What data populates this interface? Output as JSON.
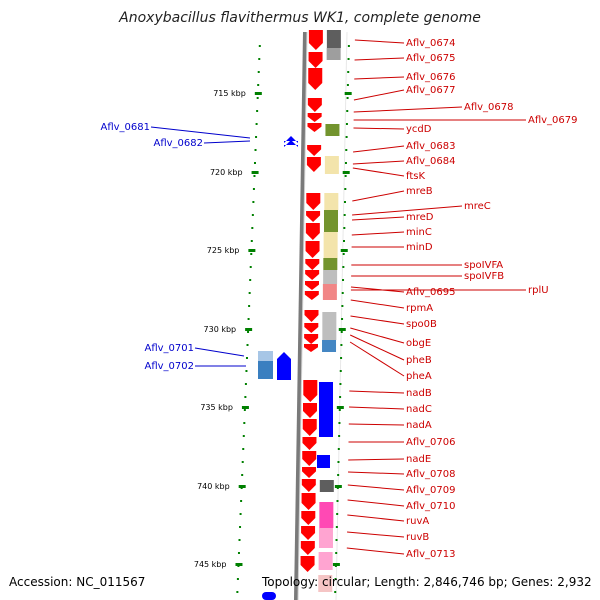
{
  "title": "Anoxybacillus flavithermus WK1, complete genome",
  "footer": {
    "accession": "Accession: NC_011567",
    "summary": "Topology: circular; Length: 2,846,746 bp; Genes: 2,932"
  },
  "colors": {
    "forward_gene": "#ff0000",
    "reverse_gene": "#0000ff",
    "label_right": "#cc0000",
    "label_left": "#0000cc",
    "tick": "#008000",
    "backbone": "#888888"
  },
  "scale_ticks": [
    {
      "label": "715 kbp"
    },
    {
      "label": "720 kbp"
    },
    {
      "label": "725 kbp"
    },
    {
      "label": "730 kbp"
    },
    {
      "label": "735 kbp"
    },
    {
      "label": "740 kbp"
    },
    {
      "label": "745 kbp"
    }
  ],
  "right_labels": [
    "Aflv_0674",
    "Aflv_0675",
    "Aflv_0676",
    "Aflv_0677",
    "Aflv_0678",
    "Aflv_0679",
    "ycdD",
    "Aflv_0683",
    "Aflv_0684",
    "ftsK",
    "mreB",
    "mreC",
    "mreD",
    "minC",
    "minD",
    "spoIVFA",
    "spoIVFB",
    "Aflv_0695",
    "rplU",
    "rpmA",
    "spo0B",
    "obgE",
    "pheB",
    "pheA",
    "nadB",
    "nadC",
    "nadA",
    "Aflv_0706",
    "nadE",
    "Aflv_0708",
    "Aflv_0709",
    "Aflv_0710",
    "ruvA",
    "ruvB",
    "Aflv_0713"
  ],
  "left_labels": [
    "Aflv_0681",
    "Aflv_0682",
    "Aflv_0701",
    "Aflv_0702"
  ]
}
